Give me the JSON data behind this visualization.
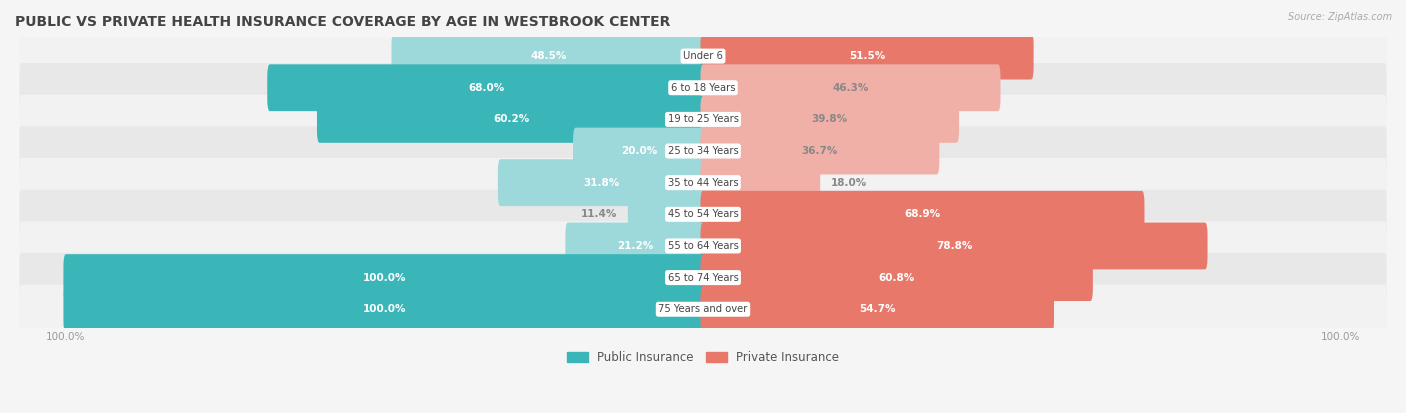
{
  "title": "PUBLIC VS PRIVATE HEALTH INSURANCE COVERAGE BY AGE IN WESTBROOK CENTER",
  "source": "Source: ZipAtlas.com",
  "categories": [
    "Under 6",
    "6 to 18 Years",
    "19 to 25 Years",
    "25 to 34 Years",
    "35 to 44 Years",
    "45 to 54 Years",
    "55 to 64 Years",
    "65 to 74 Years",
    "75 Years and over"
  ],
  "public_values": [
    48.5,
    68.0,
    60.2,
    20.0,
    31.8,
    11.4,
    21.2,
    100.0,
    100.0
  ],
  "private_values": [
    51.5,
    46.3,
    39.8,
    36.7,
    18.0,
    68.9,
    78.8,
    60.8,
    54.7
  ],
  "public_color_dark": "#3ab5b8",
  "public_color_light": "#9dd8da",
  "private_color_dark": "#e8786a",
  "private_color_light": "#f0b0a8",
  "row_colors": [
    "#f2f2f2",
    "#e8e8e8"
  ],
  "label_bg": "#ffffff",
  "title_color": "#444444",
  "source_color": "#aaaaaa",
  "tick_color": "#999999",
  "white_text": "#ffffff",
  "dark_text": "#888888",
  "pub_dark_threshold": 50,
  "priv_dark_threshold": 50,
  "figwidth": 14.06,
  "figheight": 4.13,
  "dpi": 100
}
